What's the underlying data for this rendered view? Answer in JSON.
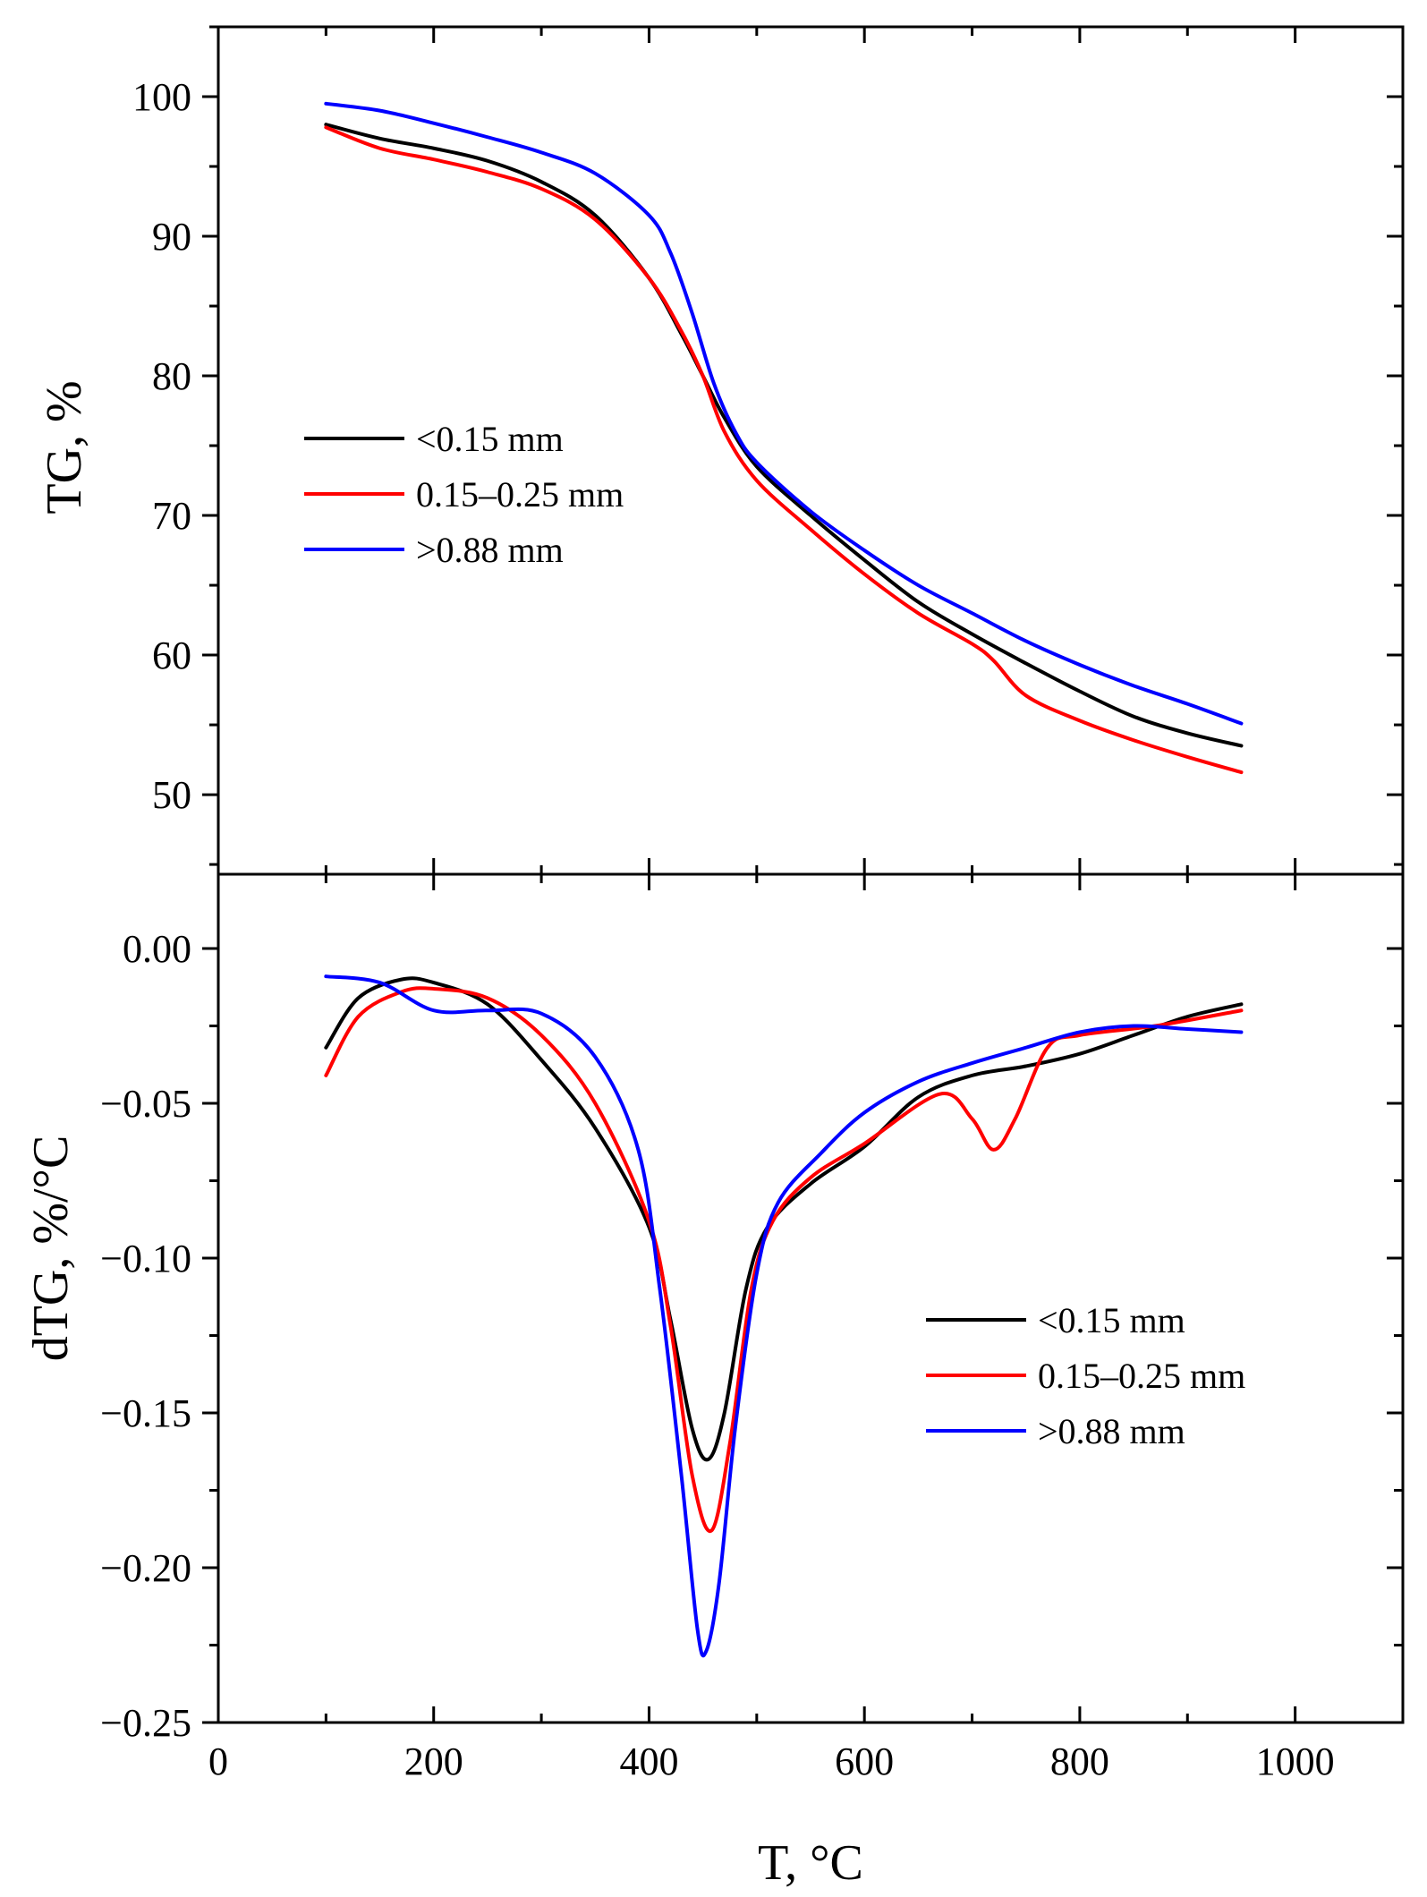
{
  "chart_data": [
    {
      "type": "line",
      "panel": "top",
      "title": "",
      "xlabel": "",
      "ylabel": "TG, %",
      "xlim": [
        0,
        1100
      ],
      "ylim": [
        44.3,
        105
      ],
      "xticks": [
        0,
        200,
        400,
        600,
        800,
        1000
      ],
      "yticks": [
        50,
        60,
        70,
        80,
        90,
        100
      ],
      "ytick_labels": [
        "50",
        "60",
        "70",
        "80",
        "90",
        "100"
      ],
      "legend_position": "middle-left",
      "series": [
        {
          "name": "<0.15 mm",
          "color": "#000000",
          "x": [
            100,
            150,
            200,
            250,
            300,
            350,
            400,
            430,
            450,
            470,
            500,
            550,
            600,
            650,
            700,
            750,
            800,
            850,
            900,
            950
          ],
          "y": [
            98.0,
            97.0,
            96.3,
            95.4,
            93.9,
            91.5,
            87.0,
            83.0,
            80.0,
            77.0,
            73.5,
            70.0,
            66.8,
            63.8,
            61.5,
            59.4,
            57.4,
            55.6,
            54.4,
            53.5
          ]
        },
        {
          "name": "0.15–0.25 mm",
          "color": "#ff0000",
          "x": [
            100,
            150,
            200,
            250,
            300,
            350,
            400,
            430,
            450,
            470,
            500,
            550,
            600,
            650,
            700,
            720,
            750,
            800,
            850,
            900,
            950
          ],
          "y": [
            97.8,
            96.3,
            95.5,
            94.6,
            93.4,
            91.2,
            87.0,
            83.2,
            80.0,
            76.0,
            72.5,
            69.0,
            65.8,
            63.0,
            60.8,
            59.6,
            57.1,
            55.3,
            53.9,
            52.7,
            51.6
          ]
        },
        {
          "name": ">0.88 mm",
          "color": "#0000ff",
          "x": [
            100,
            150,
            200,
            250,
            300,
            350,
            400,
            420,
            440,
            460,
            480,
            500,
            550,
            600,
            650,
            700,
            750,
            800,
            850,
            900,
            950
          ],
          "y": [
            99.5,
            99.0,
            98.1,
            97.1,
            96.0,
            94.5,
            91.5,
            88.8,
            84.5,
            79.5,
            76.0,
            73.8,
            70.3,
            67.5,
            65.0,
            63.0,
            61.0,
            59.3,
            57.8,
            56.5,
            55.1
          ]
        }
      ]
    },
    {
      "type": "line",
      "panel": "bottom",
      "title": "",
      "xlabel": "T, °C",
      "ylabel": "dTG, %/°C",
      "xlim": [
        0,
        1100
      ],
      "ylim": [
        -0.25,
        0.024
      ],
      "xticks": [
        0,
        200,
        400,
        600,
        800,
        1000
      ],
      "xtick_labels": [
        "0",
        "200",
        "400",
        "600",
        "800",
        "1000"
      ],
      "yticks": [
        0.0,
        -0.05,
        -0.1,
        -0.15,
        -0.2,
        -0.25
      ],
      "ytick_labels": [
        "0.00",
        "−0.05",
        "−0.10",
        "−0.15",
        "−0.20",
        "−0.25"
      ],
      "legend_position": "lower-right",
      "series": [
        {
          "name": "<0.15 mm",
          "color": "#000000",
          "x": [
            100,
            130,
            170,
            200,
            250,
            300,
            350,
            400,
            420,
            440,
            455,
            470,
            490,
            510,
            550,
            600,
            650,
            700,
            750,
            800,
            850,
            900,
            950
          ],
          "y": [
            -0.032,
            -0.016,
            -0.01,
            -0.011,
            -0.018,
            -0.036,
            -0.058,
            -0.09,
            -0.12,
            -0.155,
            -0.165,
            -0.15,
            -0.11,
            -0.09,
            -0.076,
            -0.064,
            -0.048,
            -0.041,
            -0.038,
            -0.034,
            -0.028,
            -0.022,
            -0.018
          ]
        },
        {
          "name": "0.15–0.25 mm",
          "color": "#ff0000",
          "x": [
            100,
            130,
            170,
            200,
            250,
            300,
            350,
            400,
            420,
            440,
            458,
            475,
            495,
            515,
            550,
            600,
            670,
            700,
            720,
            740,
            770,
            800,
            870,
            950
          ],
          "y": [
            -0.041,
            -0.022,
            -0.014,
            -0.013,
            -0.016,
            -0.028,
            -0.05,
            -0.088,
            -0.122,
            -0.17,
            -0.188,
            -0.16,
            -0.11,
            -0.088,
            -0.074,
            -0.063,
            -0.047,
            -0.055,
            -0.065,
            -0.055,
            -0.032,
            -0.028,
            -0.025,
            -0.02
          ]
        },
        {
          "name": ">0.88 mm",
          "color": "#0000ff",
          "x": [
            100,
            150,
            200,
            250,
            300,
            350,
            390,
            410,
            430,
            445,
            453,
            465,
            480,
            500,
            520,
            560,
            600,
            650,
            700,
            750,
            800,
            850,
            900,
            950
          ],
          "y": [
            -0.009,
            -0.011,
            -0.02,
            -0.02,
            -0.021,
            -0.035,
            -0.065,
            -0.11,
            -0.17,
            -0.22,
            -0.227,
            -0.205,
            -0.155,
            -0.105,
            -0.082,
            -0.066,
            -0.053,
            -0.043,
            -0.037,
            -0.032,
            -0.027,
            -0.025,
            -0.026,
            -0.027
          ]
        }
      ]
    }
  ]
}
